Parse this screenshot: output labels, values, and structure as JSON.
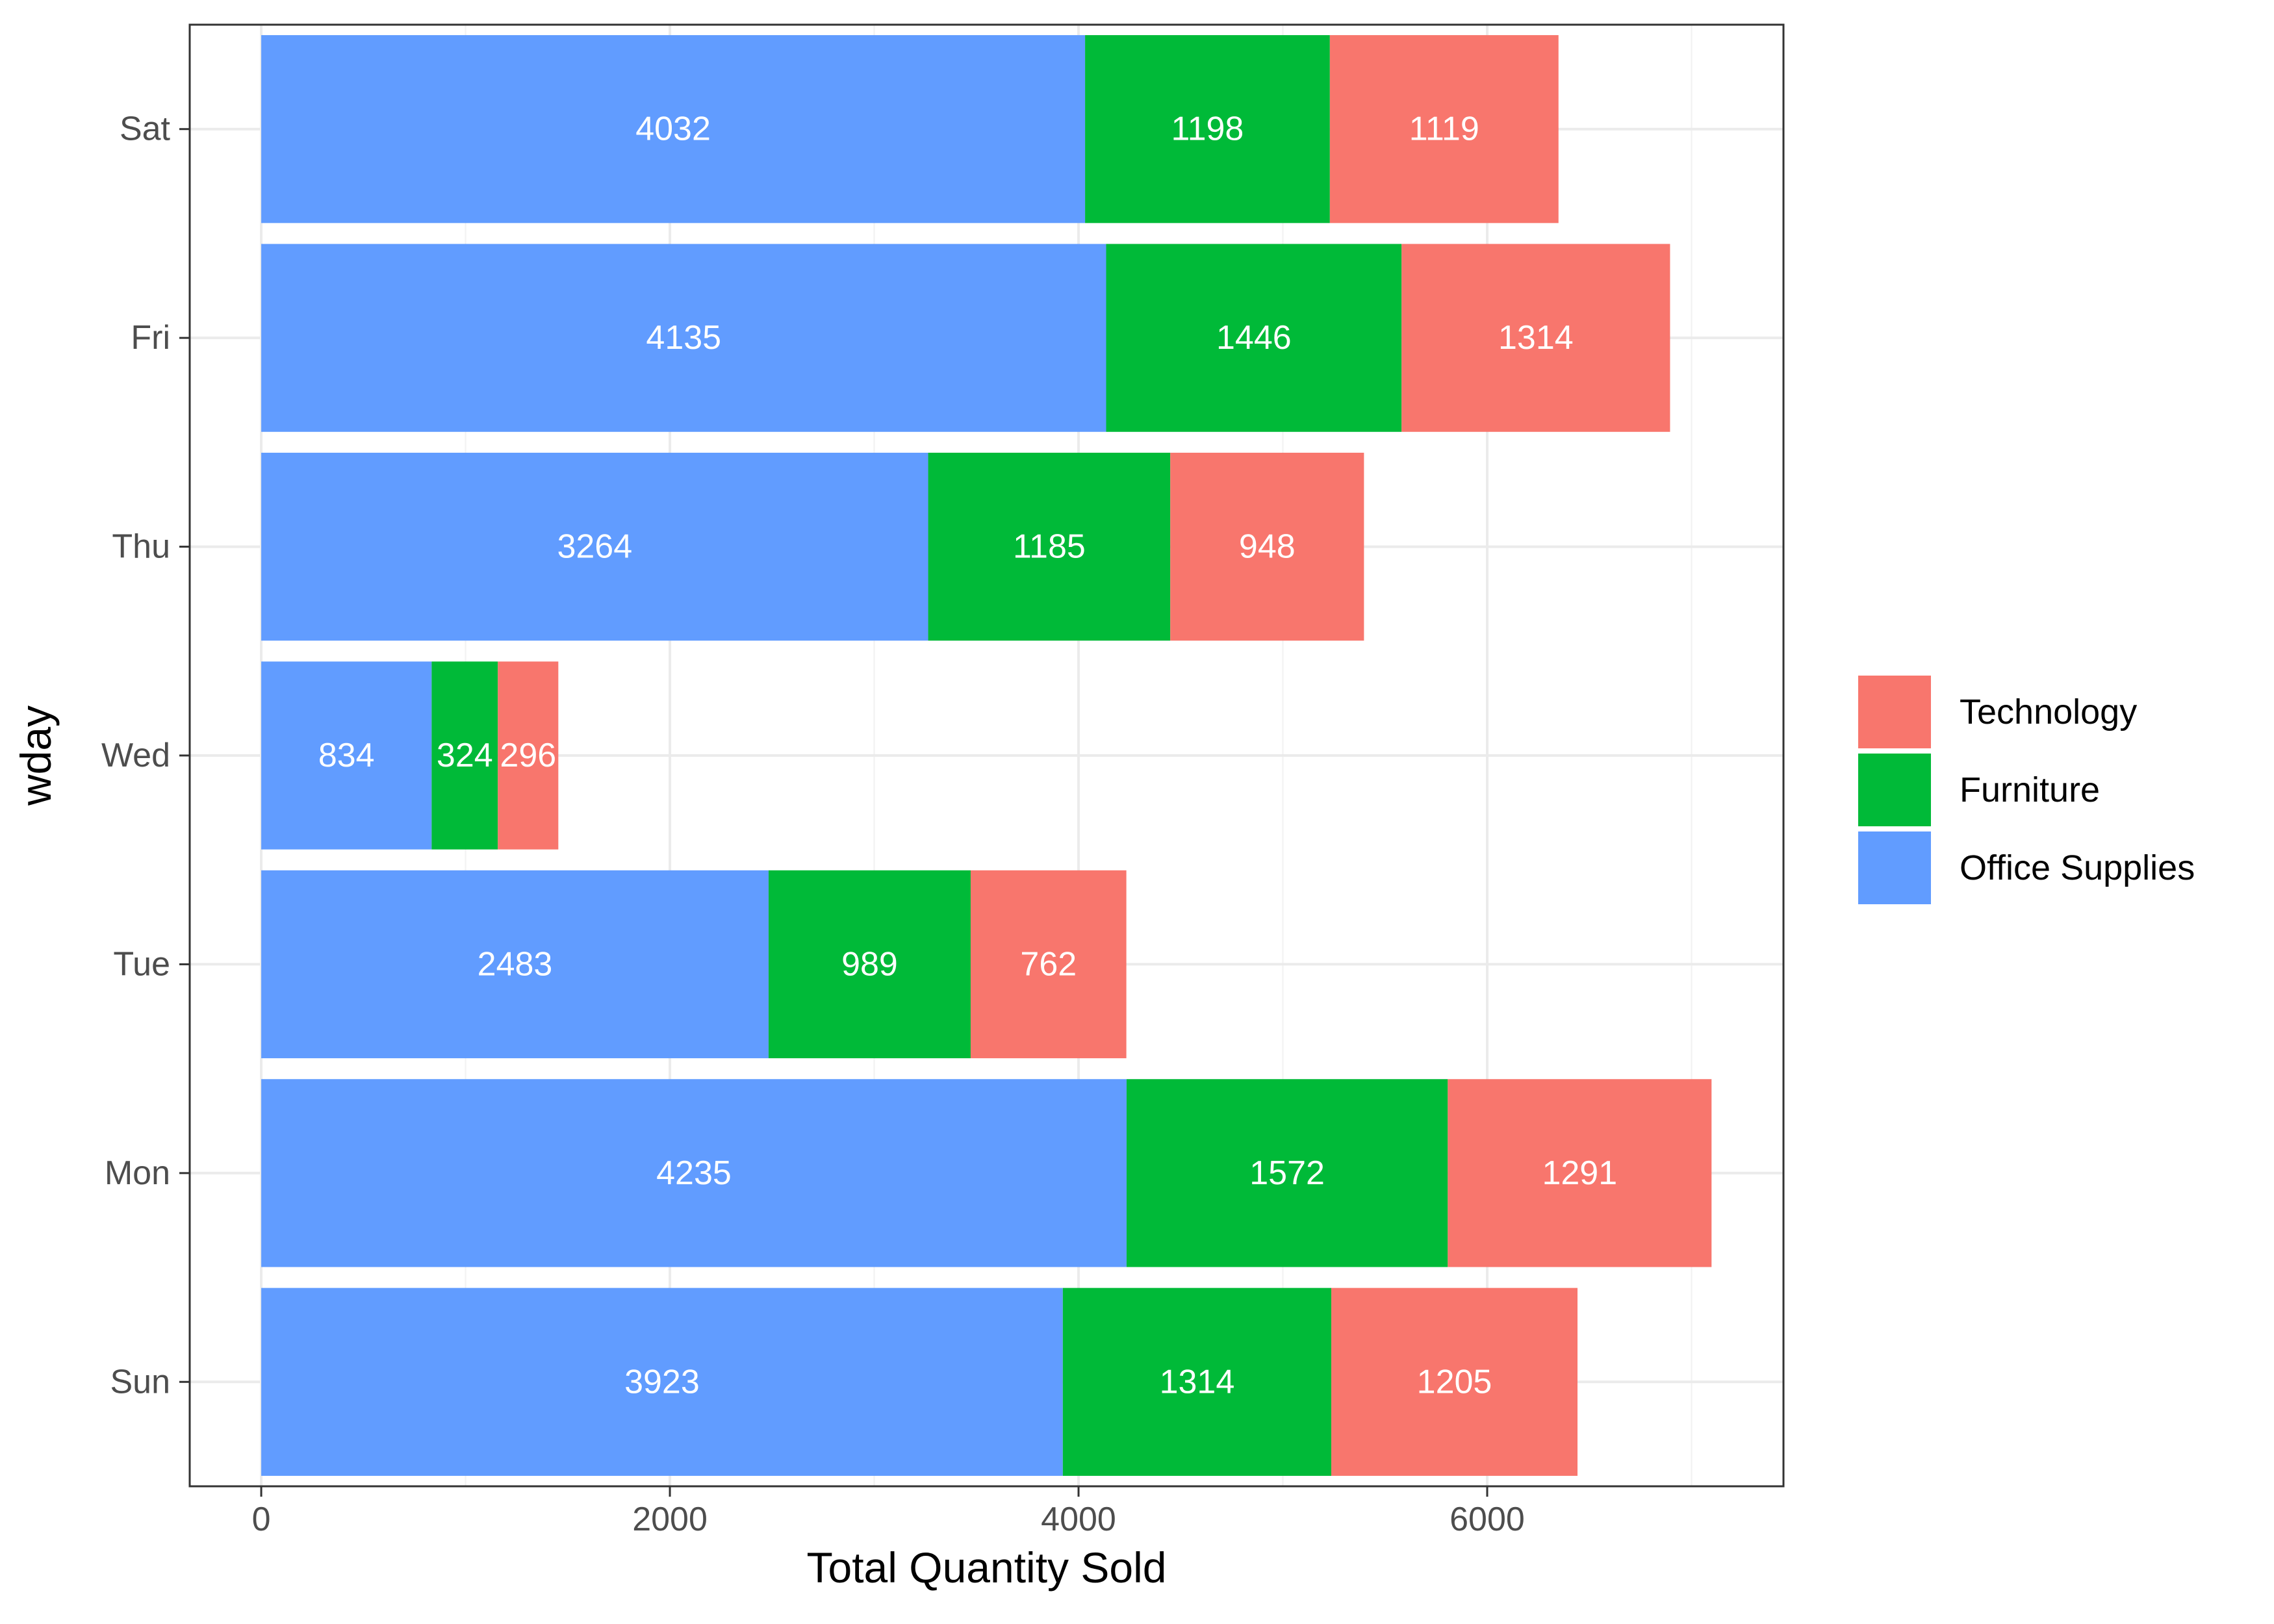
{
  "chart_data": {
    "type": "bar",
    "orientation": "horizontal",
    "stacked": true,
    "xlabel": "Total Quantity Sold",
    "ylabel": "wday",
    "categories": [
      "Sun",
      "Mon",
      "Tue",
      "Wed",
      "Thu",
      "Fri",
      "Sat"
    ],
    "xlim": [
      -350,
      7450
    ],
    "xticks": [
      0,
      2000,
      4000,
      6000
    ],
    "grid": true,
    "legend_position": "right",
    "series": [
      {
        "name": "Office Supplies",
        "color": "#619CFF",
        "values": [
          3923,
          4235,
          2483,
          834,
          3264,
          4135,
          4032
        ]
      },
      {
        "name": "Furniture",
        "color": "#00BA38",
        "values": [
          1314,
          1572,
          989,
          324,
          1185,
          1446,
          1198
        ]
      },
      {
        "name": "Technology",
        "color": "#F8766D",
        "values": [
          1205,
          1291,
          762,
          296,
          948,
          1314,
          1119
        ]
      }
    ],
    "legend_order": [
      "Technology",
      "Furniture",
      "Office Supplies"
    ]
  }
}
